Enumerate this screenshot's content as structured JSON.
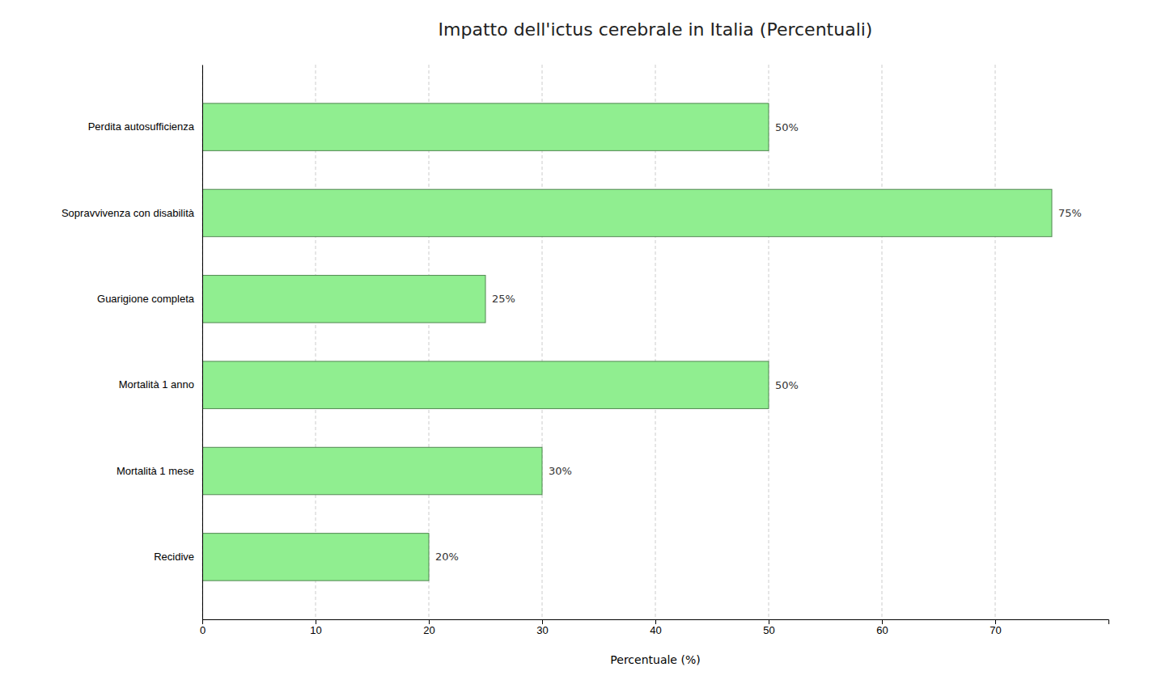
{
  "chart_data": {
    "type": "bar",
    "orientation": "horizontal",
    "title": "Impatto dell'ictus cerebrale in Italia (Percentuali)",
    "categories": [
      "Recidive",
      "Mortalità 1 mese",
      "Mortalità 1 anno",
      "Guarigione completa",
      "Sopravvivenza con disabilità",
      "Perdita autosufficienza"
    ],
    "values": [
      20,
      30,
      50,
      25,
      75,
      50
    ],
    "value_labels": [
      "20%",
      "30%",
      "50%",
      "25%",
      "75%",
      "50%"
    ],
    "data_labels": true,
    "color": "#90EE90",
    "xlabel": "Percentuale (%)",
    "xlim": [
      0,
      80
    ],
    "xticks": [
      0,
      10,
      20,
      30,
      40,
      50,
      60,
      70
    ],
    "grid": true
  }
}
